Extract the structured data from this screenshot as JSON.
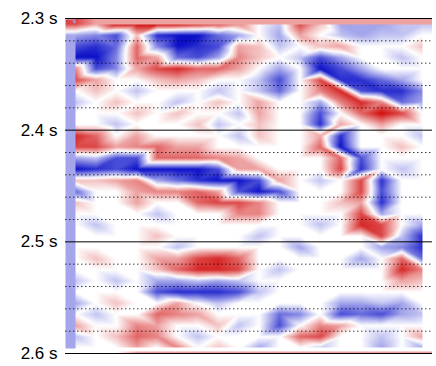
{
  "chart_data": {
    "type": "heatmap",
    "ylim": [
      2.3,
      2.6
    ],
    "yticks": [
      {
        "value": 2.3,
        "label": "2.3 s"
      },
      {
        "value": 2.4,
        "label": "2.4 s"
      },
      {
        "value": 2.5,
        "label": "2.5 s"
      },
      {
        "value": 2.6,
        "label": "2.6 s"
      }
    ],
    "grid": true,
    "tick_labels": "y",
    "cells": [
      [
        6,
        3,
        8,
        8,
        8,
        8,
        7,
        6,
        4,
        0,
        -2,
        6,
        2,
        -3,
        -3,
        -3,
        -2,
        -2
      ],
      [
        -3,
        -4,
        -6,
        2,
        -7,
        -8,
        -8,
        -5,
        -3,
        0,
        -3,
        3,
        0,
        -2,
        -3,
        -2,
        -2,
        0
      ],
      [
        -6,
        -7,
        -5,
        5,
        -4,
        -8,
        -7,
        -6,
        3,
        2,
        -2,
        0,
        2,
        3,
        0,
        0,
        0,
        2
      ],
      [
        -8,
        -8,
        -4,
        5,
        3,
        -5,
        -6,
        -3,
        4,
        2,
        0,
        -2,
        -6,
        -3,
        0,
        0,
        -2,
        0
      ],
      [
        4,
        -6,
        -4,
        3,
        6,
        7,
        5,
        5,
        3,
        0,
        -3,
        0,
        -8,
        -6,
        -3,
        0,
        0,
        0
      ],
      [
        6,
        3,
        0,
        0,
        2,
        3,
        2,
        0,
        0,
        -2,
        -6,
        0,
        6,
        -7,
        -7,
        -5,
        -3,
        0
      ],
      [
        0,
        2,
        0,
        -2,
        0,
        0,
        0,
        -2,
        0,
        -2,
        -5,
        0,
        4,
        7,
        -6,
        -7,
        -7,
        -4
      ],
      [
        -2,
        0,
        2,
        0,
        0,
        -2,
        0,
        2,
        0,
        3,
        0,
        0,
        -3,
        4,
        7,
        4,
        -5,
        -3
      ],
      [
        0,
        0,
        0,
        2,
        0,
        2,
        0,
        0,
        -2,
        3,
        0,
        0,
        -6,
        0,
        5,
        8,
        6,
        0
      ],
      [
        0,
        0,
        -2,
        0,
        0,
        0,
        2,
        -2,
        0,
        2,
        0,
        0,
        -7,
        3,
        0,
        3,
        0,
        0
      ],
      [
        7,
        5,
        0,
        3,
        0,
        0,
        0,
        0,
        -2,
        2,
        0,
        0,
        3,
        -7,
        0,
        0,
        0,
        -2
      ],
      [
        6,
        6,
        3,
        4,
        5,
        3,
        3,
        0,
        0,
        0,
        0,
        0,
        5,
        -8,
        0,
        0,
        2,
        0
      ],
      [
        -3,
        -2,
        -6,
        -6,
        5,
        5,
        5,
        4,
        3,
        0,
        0,
        0,
        0,
        5,
        -6,
        0,
        0,
        0
      ],
      [
        -8,
        -7,
        -6,
        -8,
        -8,
        -8,
        -8,
        -6,
        3,
        3,
        0,
        0,
        0,
        6,
        -7,
        0,
        -2,
        0
      ],
      [
        2,
        2,
        3,
        4,
        -3,
        -5,
        -7,
        -8,
        -8,
        -6,
        3,
        0,
        -2,
        0,
        6,
        -7,
        0,
        0
      ],
      [
        -5,
        0,
        0,
        3,
        4,
        4,
        5,
        3,
        -6,
        -8,
        -6,
        0,
        0,
        0,
        6,
        -6,
        0,
        0
      ],
      [
        2,
        0,
        0,
        3,
        0,
        0,
        5,
        6,
        6,
        4,
        0,
        0,
        0,
        2,
        3,
        -7,
        0,
        0
      ],
      [
        0,
        0,
        0,
        0,
        -2,
        0,
        0,
        0,
        4,
        4,
        0,
        0,
        0,
        0,
        6,
        -3,
        0,
        0
      ],
      [
        0,
        -2,
        0,
        0,
        0,
        0,
        0,
        0,
        0,
        0,
        0,
        0,
        -2,
        0,
        7,
        6,
        0,
        -3
      ],
      [
        0,
        0,
        0,
        0,
        2,
        0,
        0,
        0,
        0,
        -2,
        0,
        0,
        0,
        0,
        0,
        6,
        -2,
        -7
      ],
      [
        0,
        0,
        0,
        0,
        0,
        -2,
        0,
        0,
        0,
        0,
        0,
        -3,
        0,
        0,
        0,
        -3,
        -4,
        -7
      ],
      [
        0,
        2,
        0,
        0,
        3,
        3,
        6,
        7,
        5,
        0,
        0,
        0,
        0,
        0,
        -3,
        0,
        5,
        -5
      ],
      [
        0,
        0,
        0,
        0,
        2,
        5,
        7,
        7,
        6,
        0,
        -2,
        0,
        0,
        0,
        0,
        0,
        7,
        4
      ],
      [
        -2,
        0,
        -2,
        0,
        -3,
        -3,
        -2,
        -3,
        -2,
        0,
        0,
        0,
        0,
        0,
        0,
        0,
        3,
        2
      ],
      [
        0,
        0,
        0,
        0,
        -6,
        -7,
        -7,
        -7,
        -6,
        -2,
        0,
        0,
        0,
        0,
        0,
        0,
        0,
        0
      ],
      [
        -3,
        0,
        2,
        0,
        0,
        3,
        0,
        -2,
        0,
        0,
        0,
        0,
        0,
        -3,
        -3,
        -2,
        -3,
        0
      ],
      [
        0,
        -2,
        0,
        0,
        5,
        4,
        3,
        0,
        0,
        0,
        -5,
        -4,
        0,
        -6,
        -5,
        -6,
        -3,
        -2
      ],
      [
        3,
        0,
        0,
        4,
        3,
        0,
        0,
        2,
        -2,
        0,
        -6,
        0,
        4,
        3,
        0,
        0,
        0,
        0
      ],
      [
        -2,
        0,
        2,
        5,
        4,
        0,
        -2,
        0,
        0,
        0,
        0,
        5,
        6,
        0,
        0,
        -2,
        0,
        3
      ],
      [
        0,
        0,
        0,
        3,
        0,
        4,
        0,
        2,
        0,
        -3,
        0,
        0,
        -2,
        0,
        0,
        -3,
        0,
        -3
      ]
    ]
  }
}
